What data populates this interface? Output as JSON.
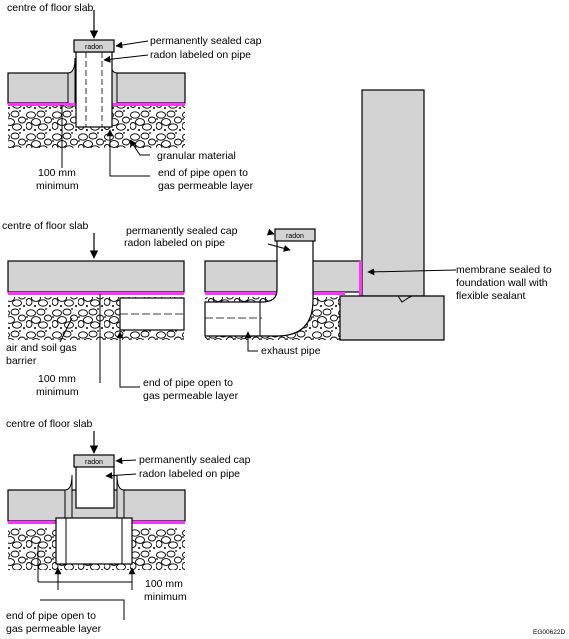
{
  "diagram_1": {
    "centre_label": "centre of floor slab",
    "cap_label": "permanently sealed cap",
    "pipe_label": "radon labeled on pipe",
    "cap_text": "radon",
    "granular_label": "granular material",
    "min_label_line1": "100 mm",
    "min_label_line2": "minimum",
    "end_label_line1": "end of pipe open to",
    "end_label_line2": "gas permeable layer"
  },
  "diagram_2": {
    "centre_label": "centre of floor slab",
    "cap_label": "permanently sealed cap",
    "pipe_label": "radon labeled on pipe",
    "cap_text": "radon",
    "barrier_line1": "air and soil gas",
    "barrier_line2": "barrier",
    "min_label_line1": "100 mm",
    "min_label_line2": "minimum",
    "end_label_line1": "end of pipe open to",
    "end_label_line2": "gas permeable layer",
    "exhaust_label": "exhaust pipe",
    "membrane_line1": "membrane sealed to",
    "membrane_line2": "foundation wall with",
    "membrane_line3": "flexible sealant"
  },
  "diagram_3": {
    "centre_label": "centre of floor slab",
    "cap_label": "permanently sealed cap",
    "pipe_label": "radon labeled on pipe",
    "cap_text": "radon",
    "min_label_line1": "100 mm",
    "min_label_line2": "minimum",
    "end_label_line1": "end of pipe open to",
    "end_label_line2": "gas permeable layer"
  },
  "figure_code": "EG00622D",
  "colors": {
    "concrete": "#d3d3d3",
    "membrane": "#ff33ff",
    "line": "#000000"
  }
}
